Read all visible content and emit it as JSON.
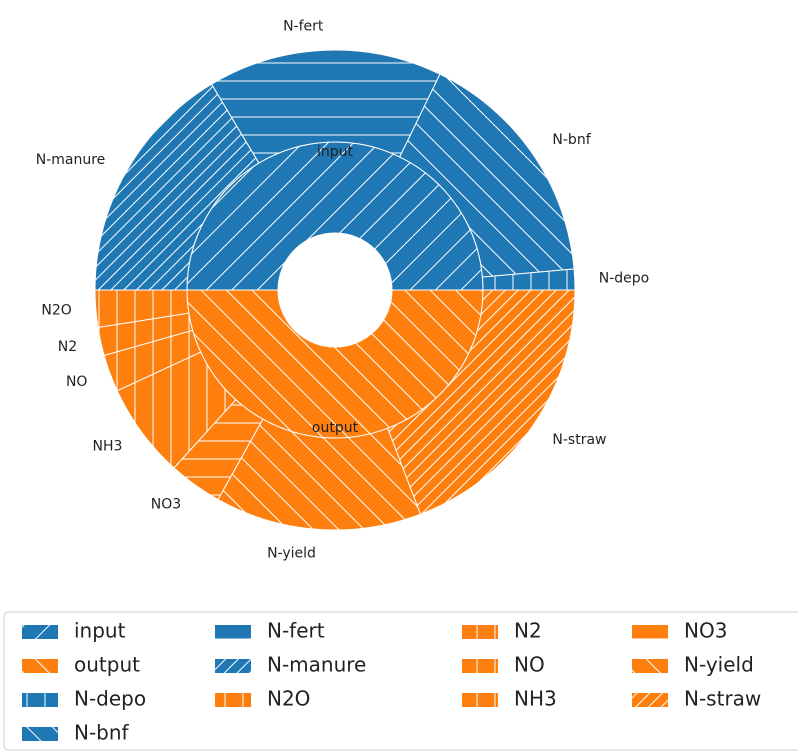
{
  "chart_data": {
    "type": "nested-pie",
    "rings": [
      {
        "categories": [
          "input",
          "output"
        ],
        "values": [
          50,
          50
        ],
        "colors": [
          "#1f77b4",
          "#ff7f0e"
        ],
        "hatches": [
          "/",
          "\\"
        ]
      },
      {
        "categories": [
          "N-depo",
          "N-bnf",
          "N-fert",
          "N-manure",
          "N2O",
          "N2",
          "NO",
          "NH3",
          "NO3",
          "N-yield",
          "N-straw"
        ],
        "values": [
          1.4,
          16.4,
          15.8,
          16.4,
          2.5,
          1.9,
          2.5,
          6.4,
          3.6,
          13.9,
          19.2
        ],
        "colors": [
          "#1f77b4",
          "#1f77b4",
          "#1f77b4",
          "#1f77b4",
          "#ff7f0e",
          "#ff7f0e",
          "#ff7f0e",
          "#ff7f0e",
          "#ff7f0e",
          "#ff7f0e",
          "#ff7f0e"
        ],
        "hatches": [
          "|",
          "\\",
          "-",
          "//",
          "|",
          "|",
          "|",
          "|",
          "-",
          "\\",
          "//"
        ]
      }
    ],
    "legend": true
  }
}
